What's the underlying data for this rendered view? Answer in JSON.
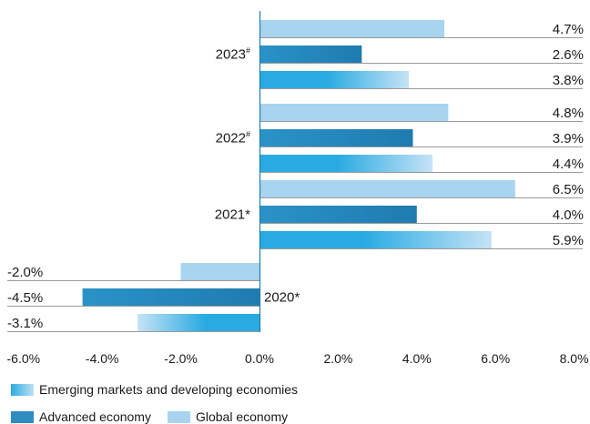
{
  "chart_data": {
    "type": "bar",
    "orientation": "horizontal",
    "categories": [
      "2023#",
      "2022#",
      "2021*",
      "2020*"
    ],
    "series": [
      {
        "name": "Global economy",
        "values": [
          4.7,
          4.8,
          6.5,
          -2.0
        ],
        "labels": [
          "4.7%",
          "4.8%",
          "6.5%",
          "-2.0%"
        ],
        "color": "#a8d4f0"
      },
      {
        "name": "Advanced economy",
        "values": [
          2.6,
          3.9,
          4.0,
          -4.5
        ],
        "labels": [
          "2.6%",
          "3.9%",
          "4.0%",
          "-4.5%"
        ],
        "color": "#2f8bc0"
      },
      {
        "name": "Emerging markets and developing economies",
        "values": [
          3.8,
          4.4,
          5.9,
          -3.1
        ],
        "labels": [
          "3.8%",
          "4.4%",
          "5.9%",
          "-3.1%"
        ],
        "color": "#29abe2"
      }
    ],
    "xlim": [
      -6.0,
      8.0
    ],
    "xticks": [
      "-6.0%",
      "-4.0%",
      "-2.0%",
      "0.0%",
      "2.0%",
      "4.0%",
      "6.0%",
      "8.0%"
    ],
    "title": "",
    "xlabel": "",
    "ylabel": "",
    "grid": false,
    "legend_position": "bottom-left"
  },
  "legend": {
    "emerging": "Emerging markets and developing economies",
    "advanced": "Advanced economy",
    "global": "Global economy"
  }
}
